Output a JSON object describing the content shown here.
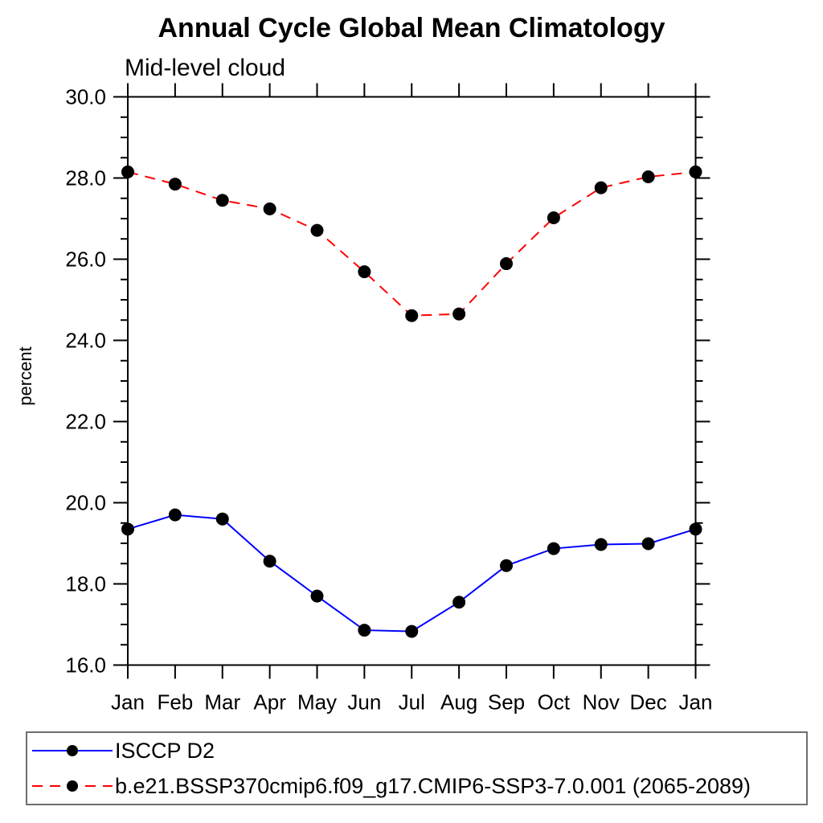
{
  "chart_data": {
    "type": "line",
    "title": "Annual Cycle Global Mean Climatology",
    "subtitle": "Mid-level cloud",
    "ylabel": "percent",
    "xlabel": "",
    "categories": [
      "Jan",
      "Feb",
      "Mar",
      "Apr",
      "May",
      "Jun",
      "Jul",
      "Aug",
      "Sep",
      "Oct",
      "Nov",
      "Dec",
      "Jan"
    ],
    "ylim": [
      16.0,
      30.0
    ],
    "ytick_step": 2.0,
    "ytick_minor_step": 0.5,
    "ytick_labels": [
      "16.0",
      "18.0",
      "20.0",
      "22.0",
      "24.0",
      "26.0",
      "28.0",
      "30.0"
    ],
    "grid": false,
    "legend_position": "bottom-left",
    "axis_color": "#000000",
    "marker": {
      "shape": "circle",
      "color": "#000000"
    },
    "series": [
      {
        "name": "ISCCP D2",
        "color": "#0000ff",
        "line_style": "solid",
        "values": [
          19.35,
          19.7,
          19.6,
          18.56,
          17.7,
          16.86,
          16.83,
          17.55,
          18.45,
          18.87,
          18.97,
          18.99,
          19.35
        ]
      },
      {
        "name": "b.e21.BSSP370cmip6.f09_g17.CMIP6-SSP3-7.0.001 (2065-2089)",
        "color": "#ff0000",
        "line_style": "dashed",
        "values": [
          28.15,
          27.85,
          27.45,
          27.24,
          26.71,
          25.69,
          24.61,
          24.65,
          25.89,
          27.02,
          27.76,
          28.03,
          28.15
        ]
      }
    ]
  }
}
